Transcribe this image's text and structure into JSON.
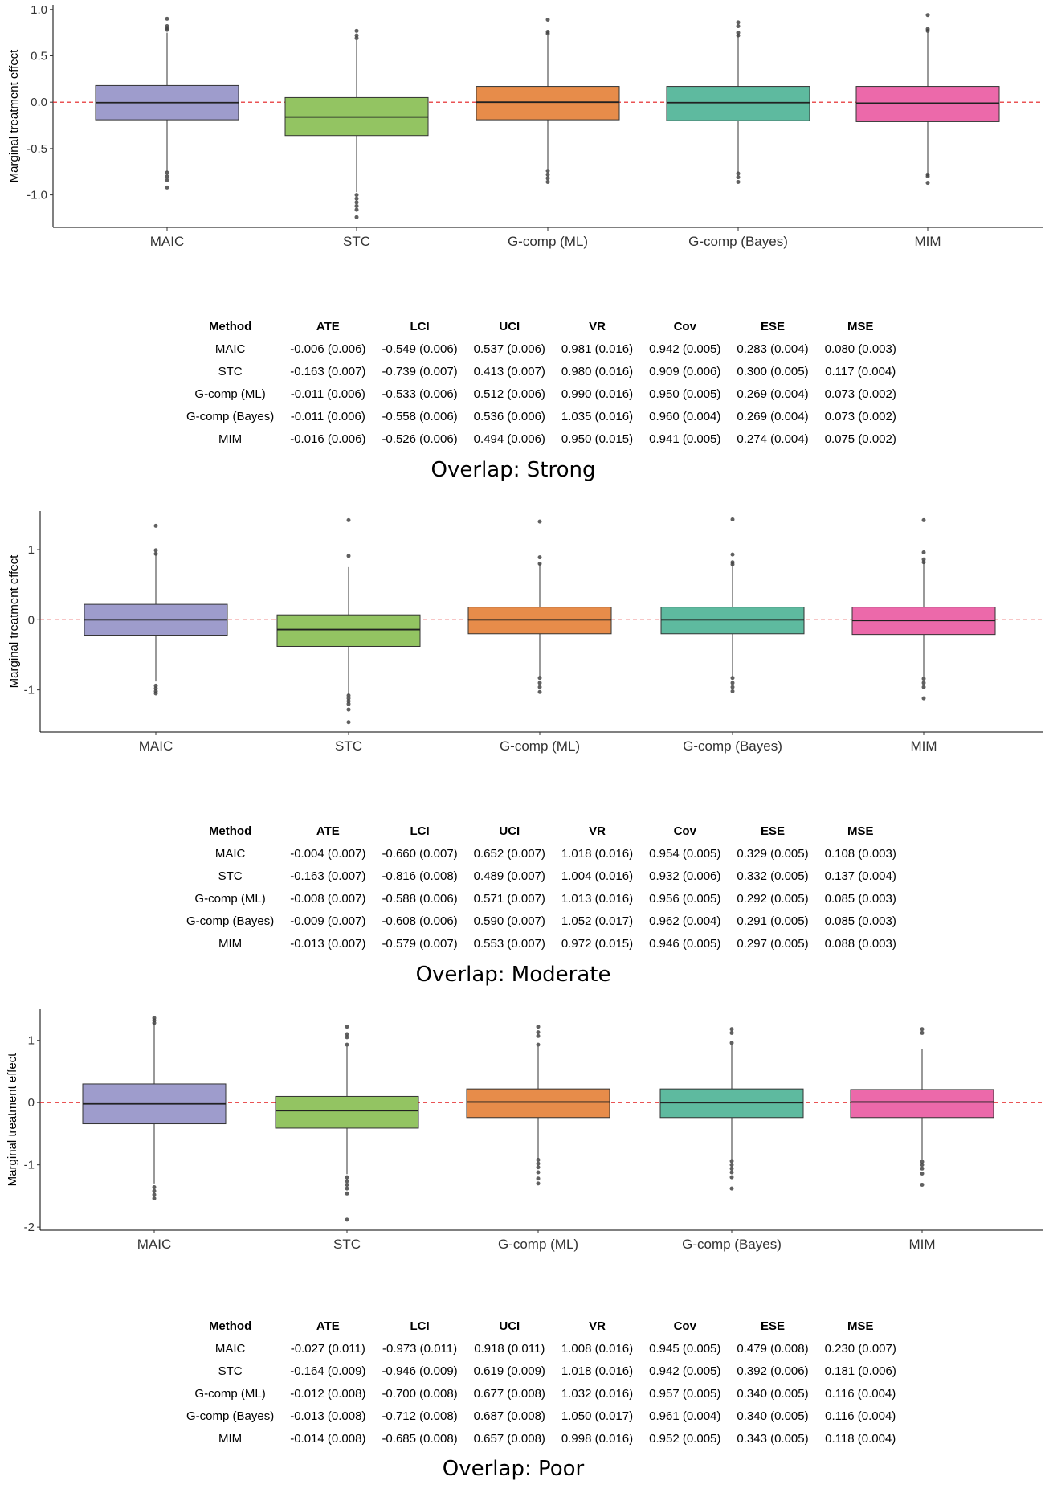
{
  "colors": {
    "MAIC": "#9e9ccc",
    "STC": "#93c462",
    "G-comp (ML)": "#e78c4a",
    "G-comp (Bayes)": "#5eba9f",
    "MIM": "#ec69aa",
    "reference_line": "#e41a1c"
  },
  "table_headers": [
    "Method",
    "ATE",
    "LCI",
    "UCI",
    "VR",
    "Cov",
    "ESE",
    "MSE"
  ],
  "chart_data": [
    {
      "type": "box",
      "ylabel": "Marginal treatment effect",
      "categories": [
        "MAIC",
        "STC",
        "G-comp (ML)",
        "G-comp (Bayes)",
        "MIM"
      ],
      "ylim": [
        -1.35,
        1.05
      ],
      "yticks": [
        1.0,
        0.5,
        0.0,
        -0.5,
        -1.0
      ],
      "ytick_labels": [
        "1.0",
        "0.5",
        "0.0",
        "-0.5",
        "-1.0"
      ],
      "reference_line": 0,
      "boxes": [
        {
          "name": "MAIC",
          "q1": -0.19,
          "median": -0.005,
          "q3": 0.18,
          "whisker_low": -0.75,
          "whisker_high": 0.75,
          "outliers": [
            0.9,
            0.82,
            0.8,
            0.78,
            -0.76,
            -0.8,
            -0.84,
            -0.92
          ]
        },
        {
          "name": "STC",
          "q1": -0.36,
          "median": -0.16,
          "q3": 0.05,
          "whisker_low": -0.97,
          "whisker_high": 0.67,
          "outliers": [
            0.77,
            0.72,
            0.69,
            -1.0,
            -1.04,
            -1.08,
            -1.12,
            -1.16,
            -1.24
          ]
        },
        {
          "name": "G-comp (ML)",
          "q1": -0.19,
          "median": 0.0,
          "q3": 0.17,
          "whisker_low": -0.72,
          "whisker_high": 0.73,
          "outliers": [
            0.89,
            0.76,
            0.74,
            -0.74,
            -0.78,
            -0.82,
            -0.86
          ]
        },
        {
          "name": "G-comp (Bayes)",
          "q1": -0.2,
          "median": -0.005,
          "q3": 0.17,
          "whisker_low": -0.76,
          "whisker_high": 0.72,
          "outliers": [
            0.86,
            0.82,
            0.75,
            0.72,
            -0.77,
            -0.81,
            -0.86
          ]
        },
        {
          "name": "MIM",
          "q1": -0.21,
          "median": -0.01,
          "q3": 0.17,
          "whisker_low": -0.76,
          "whisker_high": 0.76,
          "outliers": [
            0.94,
            0.79,
            0.77,
            -0.78,
            -0.8,
            -0.87
          ]
        }
      ],
      "table": [
        [
          "MAIC",
          "-0.006 (0.006)",
          "-0.549 (0.006)",
          "0.537 (0.006)",
          "0.981 (0.016)",
          "0.942 (0.005)",
          "0.283 (0.004)",
          "0.080 (0.003)"
        ],
        [
          "STC",
          "-0.163 (0.007)",
          "-0.739 (0.007)",
          "0.413 (0.007)",
          "0.980 (0.016)",
          "0.909 (0.006)",
          "0.300 (0.005)",
          "0.117 (0.004)"
        ],
        [
          "G-comp (ML)",
          "-0.011 (0.006)",
          "-0.533 (0.006)",
          "0.512 (0.006)",
          "0.990 (0.016)",
          "0.950 (0.005)",
          "0.269 (0.004)",
          "0.073 (0.002)"
        ],
        [
          "G-comp (Bayes)",
          "-0.011 (0.006)",
          "-0.558 (0.006)",
          "0.536 (0.006)",
          "1.035 (0.016)",
          "0.960 (0.004)",
          "0.269 (0.004)",
          "0.073 (0.002)"
        ],
        [
          "MIM",
          "-0.016 (0.006)",
          "-0.526 (0.006)",
          "0.494 (0.006)",
          "0.950 (0.015)",
          "0.941 (0.005)",
          "0.274 (0.004)",
          "0.075 (0.002)"
        ]
      ],
      "caption": "Overlap: Strong"
    },
    {
      "type": "box",
      "ylabel": "Marginal treatment effect",
      "categories": [
        "MAIC",
        "STC",
        "G-comp (ML)",
        "G-comp (Bayes)",
        "MIM"
      ],
      "ylim": [
        -1.6,
        1.55
      ],
      "yticks": [
        1,
        0,
        -1
      ],
      "ytick_labels": [
        "1",
        "0",
        "-1"
      ],
      "reference_line": 0,
      "boxes": [
        {
          "name": "MAIC",
          "q1": -0.22,
          "median": 0.0,
          "q3": 0.22,
          "whisker_low": -0.88,
          "whisker_high": 0.95,
          "outliers": [
            1.34,
            0.99,
            0.94,
            -0.94,
            -0.98,
            -1.02,
            -1.05
          ]
        },
        {
          "name": "STC",
          "q1": -0.38,
          "median": -0.14,
          "q3": 0.07,
          "whisker_low": -1.07,
          "whisker_high": 0.75,
          "outliers": [
            1.42,
            0.91,
            -1.08,
            -1.12,
            -1.16,
            -1.2,
            -1.28,
            -1.46
          ]
        },
        {
          "name": "G-comp (ML)",
          "q1": -0.2,
          "median": 0.0,
          "q3": 0.18,
          "whisker_low": -0.82,
          "whisker_high": 0.8,
          "outliers": [
            1.4,
            0.89,
            0.8,
            -0.83,
            -0.9,
            -0.96,
            -1.03
          ]
        },
        {
          "name": "G-comp (Bayes)",
          "q1": -0.2,
          "median": 0.0,
          "q3": 0.18,
          "whisker_low": -0.81,
          "whisker_high": 0.8,
          "outliers": [
            1.43,
            0.93,
            0.82,
            0.79,
            -0.83,
            -0.9,
            -0.96,
            -1.02
          ]
        },
        {
          "name": "MIM",
          "q1": -0.21,
          "median": -0.01,
          "q3": 0.18,
          "whisker_low": -0.82,
          "whisker_high": 0.82,
          "outliers": [
            1.42,
            0.96,
            0.86,
            0.82,
            -0.84,
            -0.9,
            -0.96,
            -1.12
          ]
        }
      ],
      "table": [
        [
          "MAIC",
          "-0.004 (0.007)",
          "-0.660 (0.007)",
          "0.652 (0.007)",
          "1.018 (0.016)",
          "0.954 (0.005)",
          "0.329 (0.005)",
          "0.108 (0.003)"
        ],
        [
          "STC",
          "-0.163 (0.007)",
          "-0.816 (0.008)",
          "0.489 (0.007)",
          "1.004 (0.016)",
          "0.932 (0.006)",
          "0.332 (0.005)",
          "0.137 (0.004)"
        ],
        [
          "G-comp (ML)",
          "-0.008 (0.007)",
          "-0.588 (0.006)",
          "0.571 (0.007)",
          "1.013 (0.016)",
          "0.956 (0.005)",
          "0.292 (0.005)",
          "0.085 (0.003)"
        ],
        [
          "G-comp (Bayes)",
          "-0.009 (0.007)",
          "-0.608 (0.006)",
          "0.590 (0.007)",
          "1.052 (0.017)",
          "0.962 (0.004)",
          "0.291 (0.005)",
          "0.085 (0.003)"
        ],
        [
          "MIM",
          "-0.013 (0.007)",
          "-0.579 (0.007)",
          "0.553 (0.007)",
          "0.972 (0.015)",
          "0.946 (0.005)",
          "0.297 (0.005)",
          "0.088 (0.003)"
        ]
      ],
      "caption": "Overlap: Moderate"
    },
    {
      "type": "box",
      "ylabel": "Marginal treatment effect",
      "categories": [
        "MAIC",
        "STC",
        "G-comp (ML)",
        "G-comp (Bayes)",
        "MIM"
      ],
      "ylim": [
        -2.05,
        1.5
      ],
      "yticks": [
        1,
        0,
        -1,
        -2
      ],
      "ytick_labels": [
        "1",
        "0",
        "-1",
        "-2"
      ],
      "reference_line": 0,
      "boxes": [
        {
          "name": "MAIC",
          "q1": -0.34,
          "median": -0.02,
          "q3": 0.3,
          "whisker_low": -1.3,
          "whisker_high": 1.28,
          "outliers": [
            1.36,
            1.32,
            1.28,
            -1.36,
            -1.42,
            -1.48,
            -1.54
          ]
        },
        {
          "name": "STC",
          "q1": -0.41,
          "median": -0.13,
          "q3": 0.1,
          "whisker_low": -1.15,
          "whisker_high": 0.9,
          "outliers": [
            1.22,
            1.1,
            1.05,
            0.93,
            -1.2,
            -1.26,
            -1.32,
            -1.38,
            -1.46,
            -1.88
          ]
        },
        {
          "name": "G-comp (ML)",
          "q1": -0.24,
          "median": 0.01,
          "q3": 0.22,
          "whisker_low": -0.9,
          "whisker_high": 0.9,
          "outliers": [
            1.22,
            1.13,
            1.07,
            0.93,
            -0.92,
            -0.98,
            -1.04,
            -1.12,
            -1.22,
            -1.3
          ]
        },
        {
          "name": "G-comp (Bayes)",
          "q1": -0.24,
          "median": 0.0,
          "q3": 0.22,
          "whisker_low": -0.92,
          "whisker_high": 0.92,
          "outliers": [
            1.18,
            1.12,
            0.96,
            -0.94,
            -1.0,
            -1.06,
            -1.12,
            -1.2,
            -1.38
          ]
        },
        {
          "name": "MIM",
          "q1": -0.24,
          "median": 0.01,
          "q3": 0.21,
          "whisker_low": -0.92,
          "whisker_high": 0.86,
          "outliers": [
            1.18,
            1.12,
            -0.95,
            -1.0,
            -1.06,
            -1.14,
            -1.32
          ]
        }
      ],
      "table": [
        [
          "MAIC",
          "-0.027 (0.011)",
          "-0.973 (0.011)",
          "0.918 (0.011)",
          "1.008 (0.016)",
          "0.945 (0.005)",
          "0.479 (0.008)",
          "0.230 (0.007)"
        ],
        [
          "STC",
          "-0.164 (0.009)",
          "-0.946 (0.009)",
          "0.619 (0.009)",
          "1.018 (0.016)",
          "0.942 (0.005)",
          "0.392 (0.006)",
          "0.181 (0.006)"
        ],
        [
          "G-comp (ML)",
          "-0.012 (0.008)",
          "-0.700 (0.008)",
          "0.677 (0.008)",
          "1.032 (0.016)",
          "0.957 (0.005)",
          "0.340 (0.005)",
          "0.116 (0.004)"
        ],
        [
          "G-comp (Bayes)",
          "-0.013 (0.008)",
          "-0.712 (0.008)",
          "0.687 (0.008)",
          "1.050 (0.017)",
          "0.961 (0.004)",
          "0.340 (0.005)",
          "0.116 (0.004)"
        ],
        [
          "MIM",
          "-0.014 (0.008)",
          "-0.685 (0.008)",
          "0.657 (0.008)",
          "0.998 (0.016)",
          "0.952 (0.005)",
          "0.343 (0.005)",
          "0.118 (0.004)"
        ]
      ],
      "caption": "Overlap: Poor"
    }
  ]
}
